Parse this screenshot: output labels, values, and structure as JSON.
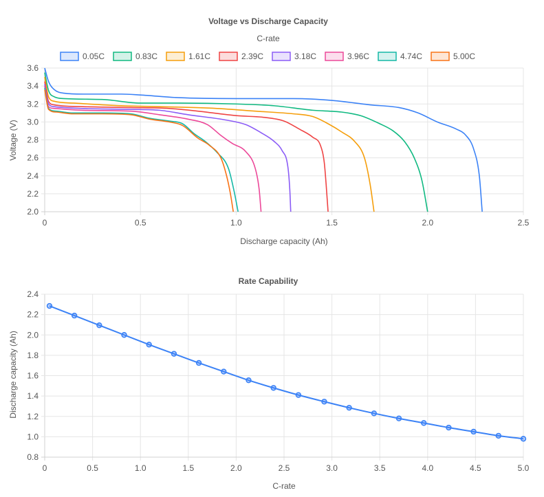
{
  "colors": [
    "#3b82f6",
    "#10b981",
    "#f59e0b",
    "#ef4444",
    "#8b5cf6",
    "#ec4899",
    "#14b8a6",
    "#f97316"
  ],
  "chart_data": [
    {
      "type": "line",
      "title": "Voltage vs Discharge Capacity",
      "legend_title": "C-rate",
      "legend_position": "top",
      "xlabel": "Discharge capacity (Ah)",
      "ylabel": "Voltage (V)",
      "xlim": [
        0,
        2.5
      ],
      "ylim": [
        2.0,
        3.6
      ],
      "xticks": [
        "0",
        "0.5",
        "1.0",
        "1.5",
        "2.0",
        "2.5"
      ],
      "yticks": [
        "2.0",
        "2.2",
        "2.4",
        "2.6",
        "2.8",
        "3.0",
        "3.2",
        "3.4",
        "3.6"
      ],
      "grid": true,
      "series": [
        {
          "name": "0.05C",
          "points": [
            [
              0,
              3.6
            ],
            [
              0.02,
              3.45
            ],
            [
              0.05,
              3.36
            ],
            [
              0.1,
              3.32
            ],
            [
              0.2,
              3.31
            ],
            [
              0.4,
              3.31
            ],
            [
              0.5,
              3.3
            ],
            [
              0.7,
              3.27
            ],
            [
              1.0,
              3.26
            ],
            [
              1.3,
              3.26
            ],
            [
              1.5,
              3.24
            ],
            [
              1.7,
              3.19
            ],
            [
              1.85,
              3.16
            ],
            [
              1.95,
              3.1
            ],
            [
              2.05,
              3.0
            ],
            [
              2.15,
              2.92
            ],
            [
              2.2,
              2.85
            ],
            [
              2.24,
              2.7
            ],
            [
              2.27,
              2.4
            ],
            [
              2.285,
              2.0
            ]
          ]
        },
        {
          "name": "0.83C",
          "points": [
            [
              0,
              3.55
            ],
            [
              0.02,
              3.35
            ],
            [
              0.05,
              3.28
            ],
            [
              0.1,
              3.26
            ],
            [
              0.3,
              3.25
            ],
            [
              0.5,
              3.21
            ],
            [
              0.7,
              3.21
            ],
            [
              1.0,
              3.2
            ],
            [
              1.2,
              3.18
            ],
            [
              1.4,
              3.13
            ],
            [
              1.55,
              3.11
            ],
            [
              1.65,
              3.07
            ],
            [
              1.75,
              2.98
            ],
            [
              1.82,
              2.9
            ],
            [
              1.88,
              2.78
            ],
            [
              1.93,
              2.6
            ],
            [
              1.97,
              2.35
            ],
            [
              2.0,
              2.0
            ]
          ]
        },
        {
          "name": "1.61C",
          "points": [
            [
              0,
              3.5
            ],
            [
              0.02,
              3.28
            ],
            [
              0.05,
              3.23
            ],
            [
              0.15,
              3.21
            ],
            [
              0.4,
              3.18
            ],
            [
              0.6,
              3.17
            ],
            [
              0.9,
              3.15
            ],
            [
              1.1,
              3.12
            ],
            [
              1.3,
              3.09
            ],
            [
              1.4,
              3.06
            ],
            [
              1.48,
              2.98
            ],
            [
              1.55,
              2.89
            ],
            [
              1.62,
              2.78
            ],
            [
              1.67,
              2.6
            ],
            [
              1.7,
              2.3
            ],
            [
              1.72,
              2.0
            ]
          ]
        },
        {
          "name": "2.39C",
          "points": [
            [
              0,
              3.45
            ],
            [
              0.02,
              3.23
            ],
            [
              0.05,
              3.19
            ],
            [
              0.2,
              3.17
            ],
            [
              0.45,
              3.16
            ],
            [
              0.65,
              3.15
            ],
            [
              0.8,
              3.12
            ],
            [
              1.0,
              3.07
            ],
            [
              1.15,
              3.05
            ],
            [
              1.25,
              3.01
            ],
            [
              1.33,
              2.92
            ],
            [
              1.4,
              2.83
            ],
            [
              1.44,
              2.74
            ],
            [
              1.46,
              2.55
            ],
            [
              1.47,
              2.3
            ],
            [
              1.48,
              2.0
            ]
          ]
        },
        {
          "name": "3.18C",
          "points": [
            [
              0,
              3.42
            ],
            [
              0.02,
              3.2
            ],
            [
              0.05,
              3.17
            ],
            [
              0.2,
              3.15
            ],
            [
              0.45,
              3.14
            ],
            [
              0.6,
              3.13
            ],
            [
              0.75,
              3.08
            ],
            [
              0.95,
              3.02
            ],
            [
              1.05,
              2.97
            ],
            [
              1.13,
              2.88
            ],
            [
              1.2,
              2.78
            ],
            [
              1.24,
              2.68
            ],
            [
              1.27,
              2.5
            ],
            [
              1.28,
              2.25
            ],
            [
              1.285,
              2.0
            ]
          ]
        },
        {
          "name": "3.96C",
          "points": [
            [
              0,
              3.4
            ],
            [
              0.02,
              3.17
            ],
            [
              0.05,
              3.15
            ],
            [
              0.2,
              3.13
            ],
            [
              0.45,
              3.12
            ],
            [
              0.6,
              3.08
            ],
            [
              0.75,
              3.03
            ],
            [
              0.85,
              2.97
            ],
            [
              0.92,
              2.85
            ],
            [
              0.98,
              2.76
            ],
            [
              1.05,
              2.67
            ],
            [
              1.1,
              2.48
            ],
            [
              1.12,
              2.25
            ],
            [
              1.13,
              2.0
            ]
          ]
        },
        {
          "name": "4.74C",
          "points": [
            [
              0,
              3.38
            ],
            [
              0.02,
              3.15
            ],
            [
              0.06,
              3.12
            ],
            [
              0.15,
              3.1
            ],
            [
              0.3,
              3.1
            ],
            [
              0.45,
              3.09
            ],
            [
              0.55,
              3.04
            ],
            [
              0.65,
              3.01
            ],
            [
              0.72,
              2.98
            ],
            [
              0.78,
              2.87
            ],
            [
              0.84,
              2.78
            ],
            [
              0.9,
              2.66
            ],
            [
              0.96,
              2.48
            ],
            [
              0.99,
              2.22
            ],
            [
              1.01,
              2.0
            ]
          ]
        },
        {
          "name": "5.00C",
          "points": [
            [
              0,
              3.36
            ],
            [
              0.02,
              3.14
            ],
            [
              0.06,
              3.11
            ],
            [
              0.15,
              3.09
            ],
            [
              0.3,
              3.09
            ],
            [
              0.45,
              3.08
            ],
            [
              0.55,
              3.03
            ],
            [
              0.65,
              3.0
            ],
            [
              0.72,
              2.96
            ],
            [
              0.8,
              2.82
            ],
            [
              0.86,
              2.74
            ],
            [
              0.92,
              2.6
            ],
            [
              0.95,
              2.4
            ],
            [
              0.97,
              2.2
            ],
            [
              0.985,
              2.0
            ]
          ]
        }
      ]
    },
    {
      "type": "line",
      "title": "Rate Capability",
      "xlabel": "C-rate",
      "ylabel": "Discharge capacity (Ah)",
      "xlim": [
        0,
        5.0
      ],
      "ylim": [
        0.8,
        2.4
      ],
      "xticks": [
        "0",
        "0.5",
        "1.0",
        "1.5",
        "2.0",
        "2.5",
        "3.0",
        "3.5",
        "4.0",
        "4.5",
        "5.0"
      ],
      "yticks": [
        "0.8",
        "1.0",
        "1.2",
        "1.4",
        "1.6",
        "1.8",
        "2.0",
        "2.2",
        "2.4"
      ],
      "grid": true,
      "x": [
        0.05,
        0.31,
        0.57,
        0.83,
        1.09,
        1.35,
        1.61,
        1.87,
        2.13,
        2.39,
        2.65,
        2.92,
        3.18,
        3.44,
        3.7,
        3.96,
        4.22,
        4.48,
        4.74,
        5.0
      ],
      "series": [
        {
          "values": [
            2.285,
            2.19,
            2.095,
            2.0,
            1.905,
            1.815,
            1.725,
            1.64,
            1.555,
            1.48,
            1.41,
            1.345,
            1.285,
            1.23,
            1.18,
            1.135,
            1.09,
            1.05,
            1.01,
            0.98
          ]
        }
      ]
    }
  ]
}
